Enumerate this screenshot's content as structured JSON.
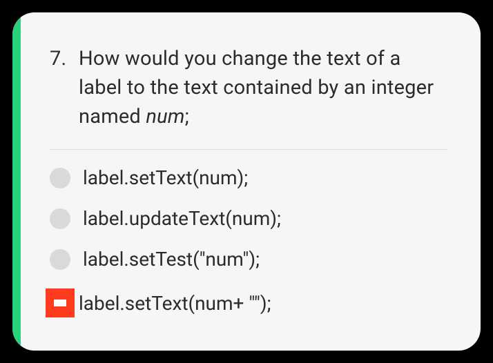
{
  "accent_color": "#27d27a",
  "question": {
    "number": "7.",
    "text_plain": "How would you change the text of a label to the text contained by an integer named ",
    "italic_tail": "num",
    "tail_punct": ";"
  },
  "options": [
    {
      "label": "label.setText(num);",
      "selected": false
    },
    {
      "label": "label.updateText(num);",
      "selected": false
    },
    {
      "label": "label.setTest(\"num\");",
      "selected": false
    },
    {
      "label": "label.setText(num+ \"\");",
      "selected": true,
      "mark_bg": "#ff3b1f",
      "mark_fg": "#ffffff"
    }
  ],
  "colors": {
    "page_bg": "#000000",
    "card_bg": "#f6f6f6",
    "text": "#2b2b2b",
    "divider": "#dcdcdc",
    "radio_fill": "#d9d9d9"
  }
}
